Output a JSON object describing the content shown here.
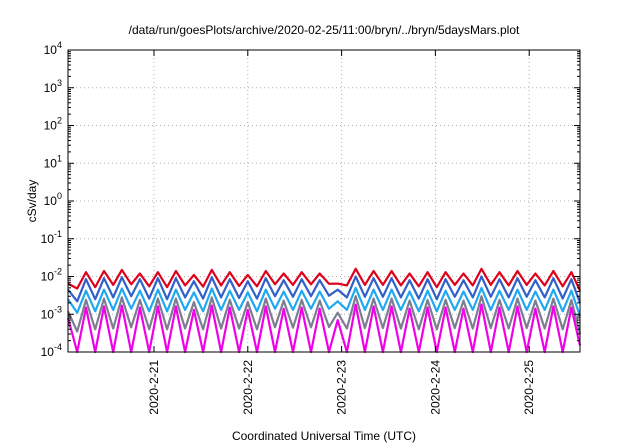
{
  "chart_data": {
    "type": "line",
    "title": "/data/run/goesPlots/archive/2020-02-25/11:00/bryn/../bryn/5daysMars.plot",
    "xlabel": "Coordinated Universal Time (UTC)",
    "ylabel": "cSv/day",
    "yscale": "log",
    "ylim": [
      0.0001,
      10000
    ],
    "xlim": [
      "2020-02-20T02:00",
      "2020-02-25T13:00"
    ],
    "y_ticks": [
      {
        "base": "10",
        "exp": "-4",
        "value": 0.0001
      },
      {
        "base": "10",
        "exp": "-3",
        "value": 0.001
      },
      {
        "base": "10",
        "exp": "-2",
        "value": 0.01
      },
      {
        "base": "10",
        "exp": "-1",
        "value": 0.1
      },
      {
        "base": "10",
        "exp": "0",
        "value": 1
      },
      {
        "base": "10",
        "exp": "1",
        "value": 10
      },
      {
        "base": "10",
        "exp": "2",
        "value": 100
      },
      {
        "base": "10",
        "exp": "3",
        "value": 1000
      },
      {
        "base": "10",
        "exp": "4",
        "value": 10000
      }
    ],
    "x_ticks": [
      {
        "label": "2020-2-21",
        "value": "2020-02-21T00:00"
      },
      {
        "label": "2020-2-22",
        "value": "2020-02-22T00:00"
      },
      {
        "label": "2020-2-23",
        "value": "2020-02-23T00:00"
      },
      {
        "label": "2020-2-24",
        "value": "2020-02-24T00:00"
      },
      {
        "label": "2020-2-25",
        "value": "2020-02-25T00:00"
      }
    ],
    "grid": true,
    "legend": "none",
    "series": [
      {
        "color": "#e0001a",
        "x": [
          "2020-02-20T02:00",
          "2020-02-20T04:22",
          "2020-02-20T06:36",
          "2020-02-20T08:58",
          "2020-02-20T11:12",
          "2020-02-20T13:34",
          "2020-02-20T15:48",
          "2020-02-20T18:10",
          "2020-02-20T20:24",
          "2020-02-20T22:46",
          "2020-02-21T01:00",
          "2020-02-21T03:22",
          "2020-02-21T05:36",
          "2020-02-21T07:58",
          "2020-02-21T10:12",
          "2020-02-21T12:34",
          "2020-02-21T14:48",
          "2020-02-21T17:10",
          "2020-02-21T19:24",
          "2020-02-21T21:46",
          "2020-02-22T00:00",
          "2020-02-22T02:22",
          "2020-02-22T04:36",
          "2020-02-22T06:58",
          "2020-02-22T09:12",
          "2020-02-22T11:34",
          "2020-02-22T13:48",
          "2020-02-22T16:10",
          "2020-02-22T18:24",
          "2020-02-22T20:46",
          "2020-02-22T23:00",
          "2020-02-23T01:22",
          "2020-02-23T03:36",
          "2020-02-23T05:58",
          "2020-02-23T08:12",
          "2020-02-23T10:34",
          "2020-02-23T12:48",
          "2020-02-23T15:10",
          "2020-02-23T17:24",
          "2020-02-23T19:46",
          "2020-02-23T22:00",
          "2020-02-24T00:22",
          "2020-02-24T02:36",
          "2020-02-24T04:58",
          "2020-02-24T07:12",
          "2020-02-24T09:34",
          "2020-02-24T11:48",
          "2020-02-24T14:10",
          "2020-02-24T16:24",
          "2020-02-24T18:46",
          "2020-02-24T21:00",
          "2020-02-24T23:22",
          "2020-02-25T01:36",
          "2020-02-25T03:58",
          "2020-02-25T06:12",
          "2020-02-25T08:34",
          "2020-02-25T10:48",
          "2020-02-25T13:00"
        ],
        "y": [
          0.0065,
          0.0048,
          0.013,
          0.0052,
          0.014,
          0.006,
          0.015,
          0.0062,
          0.012,
          0.0055,
          0.013,
          0.0052,
          0.014,
          0.0058,
          0.011,
          0.0054,
          0.015,
          0.0058,
          0.013,
          0.0056,
          0.011,
          0.0055,
          0.014,
          0.0062,
          0.012,
          0.006,
          0.013,
          0.0062,
          0.012,
          0.0064,
          0.0065,
          0.0058,
          0.016,
          0.006,
          0.014,
          0.006,
          0.014,
          0.0058,
          0.012,
          0.0055,
          0.013,
          0.0052,
          0.013,
          0.006,
          0.012,
          0.0058,
          0.016,
          0.006,
          0.013,
          0.0058,
          0.014,
          0.006,
          0.012,
          0.0058,
          0.014,
          0.0055,
          0.013,
          0.0042
        ]
      },
      {
        "color": "#3060c8",
        "x": [
          "2020-02-20T02:00",
          "2020-02-20T04:22",
          "2020-02-20T06:36",
          "2020-02-20T08:58",
          "2020-02-20T11:12",
          "2020-02-20T13:34",
          "2020-02-20T15:48",
          "2020-02-20T18:10",
          "2020-02-20T20:24",
          "2020-02-20T22:46",
          "2020-02-21T01:00",
          "2020-02-21T03:22",
          "2020-02-21T05:36",
          "2020-02-21T07:58",
          "2020-02-21T10:12",
          "2020-02-21T12:34",
          "2020-02-21T14:48",
          "2020-02-21T17:10",
          "2020-02-21T19:24",
          "2020-02-21T21:46",
          "2020-02-22T00:00",
          "2020-02-22T02:22",
          "2020-02-22T04:36",
          "2020-02-22T06:58",
          "2020-02-22T09:12",
          "2020-02-22T11:34",
          "2020-02-22T13:48",
          "2020-02-22T16:10",
          "2020-02-22T18:24",
          "2020-02-22T20:46",
          "2020-02-22T23:00",
          "2020-02-23T01:22",
          "2020-02-23T03:36",
          "2020-02-23T05:58",
          "2020-02-23T08:12",
          "2020-02-23T10:34",
          "2020-02-23T12:48",
          "2020-02-23T15:10",
          "2020-02-23T17:24",
          "2020-02-23T19:46",
          "2020-02-23T22:00",
          "2020-02-24T00:22",
          "2020-02-24T02:36",
          "2020-02-24T04:58",
          "2020-02-24T07:12",
          "2020-02-24T09:34",
          "2020-02-24T11:48",
          "2020-02-24T14:10",
          "2020-02-24T16:24",
          "2020-02-24T18:46",
          "2020-02-24T21:00",
          "2020-02-24T23:22",
          "2020-02-25T01:36",
          "2020-02-25T03:58",
          "2020-02-25T06:12",
          "2020-02-25T08:34",
          "2020-02-25T10:48",
          "2020-02-25T13:00"
        ],
        "y": [
          0.0045,
          0.0022,
          0.0085,
          0.0025,
          0.009,
          0.0028,
          0.0095,
          0.003,
          0.0085,
          0.0026,
          0.009,
          0.0025,
          0.009,
          0.0028,
          0.0075,
          0.0026,
          0.0095,
          0.0028,
          0.0085,
          0.0027,
          0.0075,
          0.0026,
          0.009,
          0.003,
          0.008,
          0.0029,
          0.0085,
          0.003,
          0.008,
          0.0031,
          0.0045,
          0.0028,
          0.01,
          0.0029,
          0.009,
          0.0029,
          0.009,
          0.0028,
          0.008,
          0.0026,
          0.0085,
          0.0025,
          0.0085,
          0.0029,
          0.008,
          0.0028,
          0.01,
          0.0029,
          0.0085,
          0.0028,
          0.009,
          0.0029,
          0.008,
          0.0028,
          0.009,
          0.0026,
          0.0085,
          0.002
        ]
      },
      {
        "color": "#20a8f0",
        "x": [
          "2020-02-20T02:00",
          "2020-02-20T04:22",
          "2020-02-20T06:36",
          "2020-02-20T08:58",
          "2020-02-20T11:12",
          "2020-02-20T13:34",
          "2020-02-20T15:48",
          "2020-02-20T18:10",
          "2020-02-20T20:24",
          "2020-02-20T22:46",
          "2020-02-21T01:00",
          "2020-02-21T03:22",
          "2020-02-21T05:36",
          "2020-02-21T07:58",
          "2020-02-21T10:12",
          "2020-02-21T12:34",
          "2020-02-21T14:48",
          "2020-02-21T17:10",
          "2020-02-21T19:24",
          "2020-02-21T21:46",
          "2020-02-22T00:00",
          "2020-02-22T02:22",
          "2020-02-22T04:36",
          "2020-02-22T06:58",
          "2020-02-22T09:12",
          "2020-02-22T11:34",
          "2020-02-22T13:48",
          "2020-02-22T16:10",
          "2020-02-22T18:24",
          "2020-02-22T20:46",
          "2020-02-22T23:00",
          "2020-02-23T01:22",
          "2020-02-23T03:36",
          "2020-02-23T05:58",
          "2020-02-23T08:12",
          "2020-02-23T10:34",
          "2020-02-23T12:48",
          "2020-02-23T15:10",
          "2020-02-23T17:24",
          "2020-02-23T19:46",
          "2020-02-23T22:00",
          "2020-02-24T00:22",
          "2020-02-24T02:36",
          "2020-02-24T04:58",
          "2020-02-24T07:12",
          "2020-02-24T09:34",
          "2020-02-24T11:48",
          "2020-02-24T14:10",
          "2020-02-24T16:24",
          "2020-02-24T18:46",
          "2020-02-24T21:00",
          "2020-02-24T23:22",
          "2020-02-25T01:36",
          "2020-02-25T03:58",
          "2020-02-25T06:12",
          "2020-02-25T08:34",
          "2020-02-25T10:48",
          "2020-02-25T13:00"
        ],
        "y": [
          0.0025,
          0.0011,
          0.0042,
          0.0012,
          0.0045,
          0.0013,
          0.0048,
          0.0014,
          0.0042,
          0.0012,
          0.0045,
          0.0012,
          0.0045,
          0.0013,
          0.0038,
          0.0012,
          0.0048,
          0.0013,
          0.0042,
          0.0013,
          0.0038,
          0.0012,
          0.0045,
          0.0014,
          0.004,
          0.0013,
          0.0042,
          0.0014,
          0.004,
          0.0014,
          0.0022,
          0.0013,
          0.005,
          0.0013,
          0.0045,
          0.0013,
          0.0045,
          0.0013,
          0.004,
          0.0012,
          0.0042,
          0.0012,
          0.0042,
          0.0013,
          0.004,
          0.0013,
          0.005,
          0.0013,
          0.0042,
          0.0013,
          0.0045,
          0.0013,
          0.004,
          0.0013,
          0.0045,
          0.0012,
          0.0042,
          0.0009
        ]
      },
      {
        "color": "#7d7d90",
        "x": [
          "2020-02-20T02:00",
          "2020-02-20T04:22",
          "2020-02-20T06:36",
          "2020-02-20T08:58",
          "2020-02-20T11:12",
          "2020-02-20T13:34",
          "2020-02-20T15:48",
          "2020-02-20T18:10",
          "2020-02-20T20:24",
          "2020-02-20T22:46",
          "2020-02-21T01:00",
          "2020-02-21T03:22",
          "2020-02-21T05:36",
          "2020-02-21T07:58",
          "2020-02-21T10:12",
          "2020-02-21T12:34",
          "2020-02-21T14:48",
          "2020-02-21T17:10",
          "2020-02-21T19:24",
          "2020-02-21T21:46",
          "2020-02-22T00:00",
          "2020-02-22T02:22",
          "2020-02-22T04:36",
          "2020-02-22T06:58",
          "2020-02-22T09:12",
          "2020-02-22T11:34",
          "2020-02-22T13:48",
          "2020-02-22T16:10",
          "2020-02-22T18:24",
          "2020-02-22T20:46",
          "2020-02-22T23:00",
          "2020-02-23T01:22",
          "2020-02-23T03:36",
          "2020-02-23T05:58",
          "2020-02-23T08:12",
          "2020-02-23T10:34",
          "2020-02-23T12:48",
          "2020-02-23T15:10",
          "2020-02-23T17:24",
          "2020-02-23T19:46",
          "2020-02-23T22:00",
          "2020-02-24T00:22",
          "2020-02-24T02:36",
          "2020-02-24T04:58",
          "2020-02-24T07:12",
          "2020-02-24T09:34",
          "2020-02-24T11:48",
          "2020-02-24T14:10",
          "2020-02-24T16:24",
          "2020-02-24T18:46",
          "2020-02-24T21:00",
          "2020-02-24T23:22",
          "2020-02-25T01:36",
          "2020-02-25T03:58",
          "2020-02-25T06:12",
          "2020-02-25T08:34",
          "2020-02-25T10:48",
          "2020-02-25T13:00"
        ],
        "y": [
          0.0012,
          0.00035,
          0.0024,
          0.0004,
          0.0026,
          0.00042,
          0.0028,
          0.00045,
          0.0024,
          0.0004,
          0.0026,
          0.0004,
          0.0026,
          0.00042,
          0.0021,
          0.0004,
          0.0028,
          0.00042,
          0.0024,
          0.00042,
          0.0021,
          0.0004,
          0.0026,
          0.00045,
          0.0023,
          0.00044,
          0.0024,
          0.00045,
          0.0023,
          0.00046,
          0.0011,
          0.00042,
          0.003,
          0.00043,
          0.0026,
          0.00043,
          0.0026,
          0.00042,
          0.0023,
          0.0004,
          0.0024,
          0.0004,
          0.0024,
          0.00043,
          0.0023,
          0.00042,
          0.003,
          0.00043,
          0.0024,
          0.00042,
          0.0026,
          0.00043,
          0.0023,
          0.00042,
          0.0026,
          0.0004,
          0.0024,
          0.0003
        ]
      },
      {
        "color": "#f000e8",
        "x": [
          "2020-02-20T02:00",
          "2020-02-20T04:22",
          "2020-02-20T06:36",
          "2020-02-20T08:58",
          "2020-02-20T11:12",
          "2020-02-20T13:34",
          "2020-02-20T15:48",
          "2020-02-20T18:10",
          "2020-02-20T20:24",
          "2020-02-20T22:46",
          "2020-02-21T01:00",
          "2020-02-21T03:22",
          "2020-02-21T05:36",
          "2020-02-21T07:58",
          "2020-02-21T10:12",
          "2020-02-21T12:34",
          "2020-02-21T14:48",
          "2020-02-21T17:10",
          "2020-02-21T19:24",
          "2020-02-21T21:46",
          "2020-02-22T00:00",
          "2020-02-22T02:22",
          "2020-02-22T04:36",
          "2020-02-22T06:58",
          "2020-02-22T09:12",
          "2020-02-22T11:34",
          "2020-02-22T13:48",
          "2020-02-22T16:10",
          "2020-02-22T18:24",
          "2020-02-22T20:46",
          "2020-02-22T23:00",
          "2020-02-23T01:22",
          "2020-02-23T03:36",
          "2020-02-23T05:58",
          "2020-02-23T08:12",
          "2020-02-23T10:34",
          "2020-02-23T12:48",
          "2020-02-23T15:10",
          "2020-02-23T17:24",
          "2020-02-23T19:46",
          "2020-02-23T22:00",
          "2020-02-24T00:22",
          "2020-02-24T02:36",
          "2020-02-24T04:58",
          "2020-02-24T07:12",
          "2020-02-24T09:34",
          "2020-02-24T11:48",
          "2020-02-24T14:10",
          "2020-02-24T16:24",
          "2020-02-24T18:46",
          "2020-02-24T21:00",
          "2020-02-24T23:22",
          "2020-02-25T01:36",
          "2020-02-25T03:58",
          "2020-02-25T06:12",
          "2020-02-25T08:34",
          "2020-02-25T10:48",
          "2020-02-25T13:00"
        ],
        "y": [
          0.0008,
          0.0001,
          0.0015,
          0.0001,
          0.0016,
          0.0001,
          0.0017,
          0.0001,
          0.0015,
          0.0001,
          0.0016,
          0.0001,
          0.0016,
          0.0001,
          0.0013,
          0.0001,
          0.0017,
          0.0001,
          0.0015,
          0.0001,
          0.0013,
          0.0001,
          0.0016,
          0.0001,
          0.0014,
          0.0001,
          0.0015,
          0.0001,
          0.0014,
          0.0001,
          0.0007,
          0.0001,
          0.0018,
          0.0001,
          0.0016,
          0.0001,
          0.0016,
          0.0001,
          0.0014,
          0.0001,
          0.0015,
          0.0001,
          0.0015,
          0.0001,
          0.0014,
          0.0001,
          0.0018,
          0.0001,
          0.0015,
          0.0001,
          0.0016,
          0.0001,
          0.0014,
          0.0001,
          0.0016,
          0.0001,
          0.0015,
          0.00015
        ]
      }
    ]
  }
}
